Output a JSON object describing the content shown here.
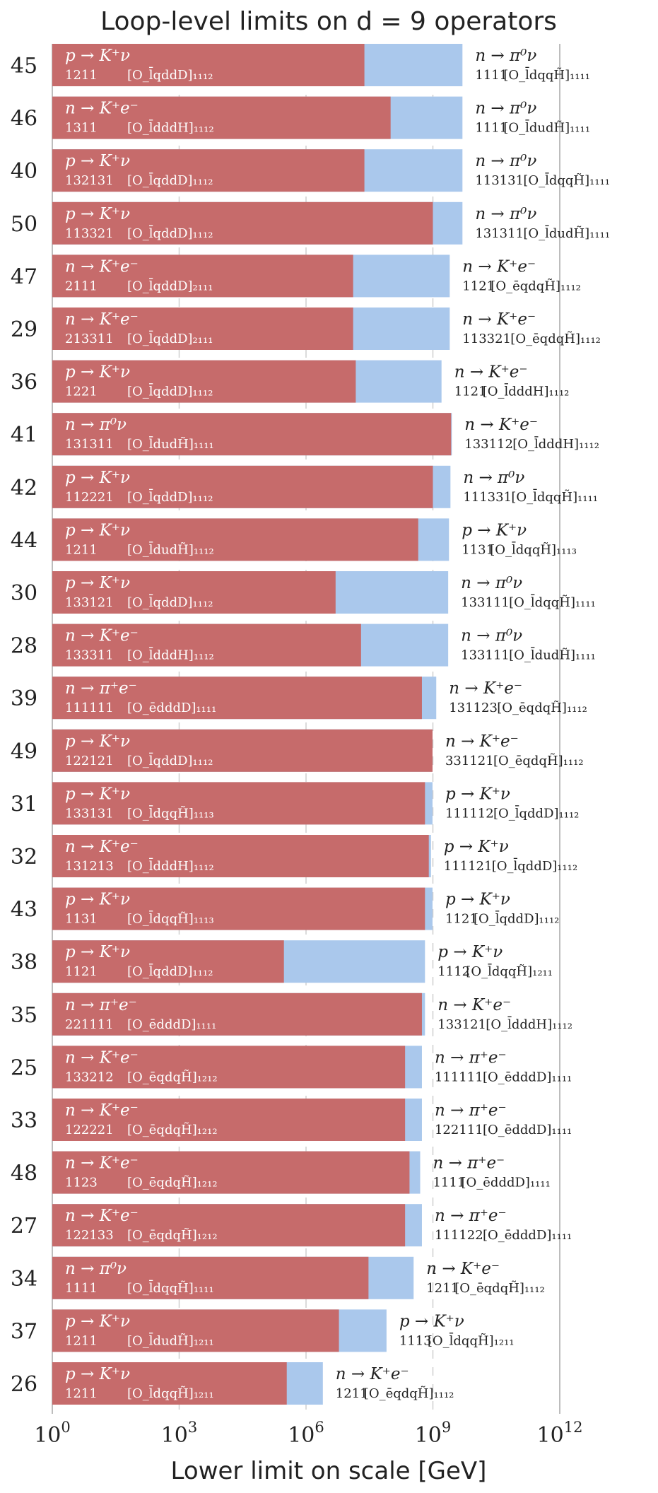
{
  "chart_data": {
    "type": "bar",
    "orientation": "horizontal",
    "title": "Loop-level limits on d = 9 operators",
    "xlabel": "Lower limit on scale [GeV]",
    "xscale": "log",
    "xlim": [
      1,
      1000000000000
    ],
    "xticks": [
      {
        "value": 1,
        "base": "10",
        "exp": "0"
      },
      {
        "value": 1000,
        "base": "10",
        "exp": "3"
      },
      {
        "value": 1000000,
        "base": "10",
        "exp": "6"
      },
      {
        "value": 1000000000,
        "base": "10",
        "exp": "9"
      },
      {
        "value": 1000000000000,
        "base": "10",
        "exp": "12"
      }
    ],
    "series": [
      {
        "name": "",
        "color": "#c66b6b",
        "label_color": "#ffffff"
      },
      {
        "name": "",
        "color": "#aac8ec",
        "label_color": "#222222"
      }
    ],
    "rows": [
      {
        "id": "45",
        "red": 24000000.0,
        "blue": 5000000000.0,
        "red_label": {
          "process": "p → K⁺ν",
          "flavor": "1211",
          "operator": "[O_l̄qddD]₁₁₁₂"
        },
        "blue_label": {
          "process": "n → π⁰ν",
          "flavor": "1111",
          "operator": "[O_l̄dqqH̃]₁₁₁₁"
        }
      },
      {
        "id": "46",
        "red": 100000000.0,
        "blue": 5000000000.0,
        "red_label": {
          "process": "n → K⁺e⁻",
          "flavor": "1311",
          "operator": "[O_l̄dddH]₁₁₁₂"
        },
        "blue_label": {
          "process": "n → π⁰ν",
          "flavor": "1111",
          "operator": "[O_l̄dudH̃]₁₁₁₁"
        }
      },
      {
        "id": "40",
        "red": 24000000.0,
        "blue": 5000000000.0,
        "red_label": {
          "process": "p → K⁺ν",
          "flavor": "132131",
          "operator": "[O_l̄qddD]₁₁₁₂"
        },
        "blue_label": {
          "process": "n → π⁰ν",
          "flavor": "113131",
          "operator": "[O_l̄dqqH̃]₁₁₁₁"
        }
      },
      {
        "id": "50",
        "red": 1000000000.0,
        "blue": 5000000000.0,
        "red_label": {
          "process": "p → K⁺ν",
          "flavor": "113321",
          "operator": "[O_l̄qddD]₁₁₁₂"
        },
        "blue_label": {
          "process": "n → π⁰ν",
          "flavor": "131311",
          "operator": "[O_l̄dudH̃]₁₁₁₁"
        }
      },
      {
        "id": "47",
        "red": 13000000.0,
        "blue": 2500000000.0,
        "red_label": {
          "process": "n → K⁺e⁻",
          "flavor": "2111",
          "operator": "[O_l̄qddD]₂₁₁₁"
        },
        "blue_label": {
          "process": "n → K⁺e⁻",
          "flavor": "1121",
          "operator": "[O_ēqdqH̃]₁₁₁₂"
        }
      },
      {
        "id": "29",
        "red": 13000000.0,
        "blue": 2500000000.0,
        "red_label": {
          "process": "n → K⁺e⁻",
          "flavor": "213311",
          "operator": "[O_l̄qddD]₂₁₁₁"
        },
        "blue_label": {
          "process": "n → K⁺e⁻",
          "flavor": "113321",
          "operator": "[O_ēqdqH̃]₁₁₁₂"
        }
      },
      {
        "id": "36",
        "red": 15000000.0,
        "blue": 1600000000.0,
        "red_label": {
          "process": "p → K⁺ν",
          "flavor": "1221",
          "operator": "[O_l̄qddD]₁₁₁₂"
        },
        "blue_label": {
          "process": "n → K⁺e⁻",
          "flavor": "1121",
          "operator": "[O_l̄dddH]₁₁₁₂"
        }
      },
      {
        "id": "41",
        "red": 2700000000.0,
        "blue": 2800000000.0,
        "red_label": {
          "process": "n → π⁰ν",
          "flavor": "131311",
          "operator": "[O_l̄dudH̃]₁₁₁₁"
        },
        "blue_label": {
          "process": "n → K⁺e⁻",
          "flavor": "133112",
          "operator": "[O_l̄dddH]₁₁₁₂"
        }
      },
      {
        "id": "42",
        "red": 1000000000.0,
        "blue": 2600000000.0,
        "red_label": {
          "process": "p → K⁺ν",
          "flavor": "112221",
          "operator": "[O_l̄qddD]₁₁₁₂"
        },
        "blue_label": {
          "process": "n → π⁰ν",
          "flavor": "111331",
          "operator": "[O_l̄dqqH̃]₁₁₁₁"
        }
      },
      {
        "id": "44",
        "red": 450000000.0,
        "blue": 2400000000.0,
        "red_label": {
          "process": "p → K⁺ν",
          "flavor": "1211",
          "operator": "[O_l̄dudH̃]₁₁₁₂"
        },
        "blue_label": {
          "process": "p → K⁺ν",
          "flavor": "1131",
          "operator": "[O_l̄dqqH̃]₁₁₁₃"
        }
      },
      {
        "id": "30",
        "red": 5000000.0,
        "blue": 2300000000.0,
        "red_label": {
          "process": "p → K⁺ν",
          "flavor": "133121",
          "operator": "[O_l̄qddD]₁₁₁₂"
        },
        "blue_label": {
          "process": "n → π⁰ν",
          "flavor": "133111",
          "operator": "[O_l̄dqqH̃]₁₁₁₁"
        }
      },
      {
        "id": "28",
        "red": 20000000.0,
        "blue": 2300000000.0,
        "red_label": {
          "process": "n → K⁺e⁻",
          "flavor": "133311",
          "operator": "[O_l̄dddH]₁₁₁₂"
        },
        "blue_label": {
          "process": "n → π⁰ν",
          "flavor": "133111",
          "operator": "[O_l̄dudH̃]₁₁₁₁"
        }
      },
      {
        "id": "39",
        "red": 550000000.0,
        "blue": 1200000000.0,
        "red_label": {
          "process": "n → π⁺e⁻",
          "flavor": "111111",
          "operator": "[O_ēdddD]₁₁₁₁"
        },
        "blue_label": {
          "process": "n → K⁺e⁻",
          "flavor": "131123",
          "operator": "[O_ēqdqH̃]₁₁₁₂"
        }
      },
      {
        "id": "49",
        "red": 980000000.0,
        "blue": 980000000.0,
        "red_label": {
          "process": "p → K⁺ν",
          "flavor": "122121",
          "operator": "[O_l̄qddD]₁₁₁₂"
        },
        "blue_label": {
          "process": "n → K⁺e⁻",
          "flavor": "331121",
          "operator": "[O_ēqdqH̃]₁₁₁₂"
        }
      },
      {
        "id": "31",
        "red": 650000000.0,
        "blue": 980000000.0,
        "red_label": {
          "process": "p → K⁺ν",
          "flavor": "133131",
          "operator": "[O_l̄dqqH̃]₁₁₁₃"
        },
        "blue_label": {
          "process": "p → K⁺ν",
          "flavor": "111112",
          "operator": "[O_l̄qddD]₁₁₁₂"
        }
      },
      {
        "id": "32",
        "red": 800000000.0,
        "blue": 900000000.0,
        "red_label": {
          "process": "n → K⁺e⁻",
          "flavor": "131213",
          "operator": "[O_l̄dddH]₁₁₁₂"
        },
        "blue_label": {
          "process": "p → K⁺ν",
          "flavor": "111121",
          "operator": "[O_l̄qddD]₁₁₁₂"
        }
      },
      {
        "id": "43",
        "red": 650000000.0,
        "blue": 980000000.0,
        "red_label": {
          "process": "p → K⁺ν",
          "flavor": "1131",
          "operator": "[O_l̄dqqH̃]₁₁₁₃"
        },
        "blue_label": {
          "process": "p → K⁺ν",
          "flavor": "1121",
          "operator": "[O_l̄qddD]₁₁₁₂"
        }
      },
      {
        "id": "38",
        "red": 300000.0,
        "blue": 650000000.0,
        "red_label": {
          "process": "p → K⁺ν",
          "flavor": "1121",
          "operator": "[O_l̄qddD]₁₁₁₂"
        },
        "blue_label": {
          "process": "p → K⁺ν",
          "flavor": "1112",
          "operator": "[O_l̄dqqH̃]₁₂₁₁"
        }
      },
      {
        "id": "35",
        "red": 550000000.0,
        "blue": 650000000.0,
        "red_label": {
          "process": "n → π⁺e⁻",
          "flavor": "221111",
          "operator": "[O_ēdddD]₁₁₁₁"
        },
        "blue_label": {
          "process": "n → K⁺e⁻",
          "flavor": "133121",
          "operator": "[O_l̄dddH]₁₁₁₂"
        }
      },
      {
        "id": "25",
        "red": 220000000.0,
        "blue": 550000000.0,
        "red_label": {
          "process": "n → K⁺e⁻",
          "flavor": "133212",
          "operator": "[O_ēqdqH̃]₁₂₁₂"
        },
        "blue_label": {
          "process": "n → π⁺e⁻",
          "flavor": "111111",
          "operator": "[O_ēdddD]₁₁₁₁"
        }
      },
      {
        "id": "33",
        "red": 220000000.0,
        "blue": 550000000.0,
        "red_label": {
          "process": "n → K⁺e⁻",
          "flavor": "122221",
          "operator": "[O_ēqdqH̃]₁₂₁₂"
        },
        "blue_label": {
          "process": "n → π⁺e⁻",
          "flavor": "122111",
          "operator": "[O_ēdddD]₁₁₁₁"
        }
      },
      {
        "id": "48",
        "red": 280000000.0,
        "blue": 500000000.0,
        "red_label": {
          "process": "n → K⁺e⁻",
          "flavor": "1123",
          "operator": "[O_ēqdqH̃]₁₂₁₂"
        },
        "blue_label": {
          "process": "n → π⁺e⁻",
          "flavor": "1111",
          "operator": "[O_ēdddD]₁₁₁₁"
        }
      },
      {
        "id": "27",
        "red": 220000000.0,
        "blue": 550000000.0,
        "red_label": {
          "process": "n → K⁺e⁻",
          "flavor": "122133",
          "operator": "[O_ēqdqH̃]₁₂₁₂"
        },
        "blue_label": {
          "process": "n → π⁺e⁻",
          "flavor": "111122",
          "operator": "[O_ēdddD]₁₁₁₁"
        }
      },
      {
        "id": "34",
        "red": 30000000.0,
        "blue": 350000000.0,
        "red_label": {
          "process": "n → π⁰ν",
          "flavor": "1111",
          "operator": "[O_l̄dqqH̃]₁₁₁₁"
        },
        "blue_label": {
          "process": "n → K⁺e⁻",
          "flavor": "1211",
          "operator": "[O_ēqdqH̃]₁₁₁₂"
        }
      },
      {
        "id": "37",
        "red": 6000000.0,
        "blue": 80000000.0,
        "red_label": {
          "process": "p → K⁺ν",
          "flavor": "1211",
          "operator": "[O_l̄dudH̃]₁₂₁₁"
        },
        "blue_label": {
          "process": "p → K⁺ν",
          "flavor": "1113",
          "operator": "[O_l̄dqqH̃]₁₂₁₁"
        }
      },
      {
        "id": "26",
        "red": 350000.0,
        "blue": 2500000.0,
        "red_label": {
          "process": "p → K⁺ν",
          "flavor": "1211",
          "operator": "[O_l̄dqqH̃]₁₂₁₁"
        },
        "blue_label": {
          "process": "n → K⁺e⁻",
          "flavor": "1211",
          "operator": "[O_ēqdqH̃]₁₁₁₂"
        }
      }
    ]
  }
}
